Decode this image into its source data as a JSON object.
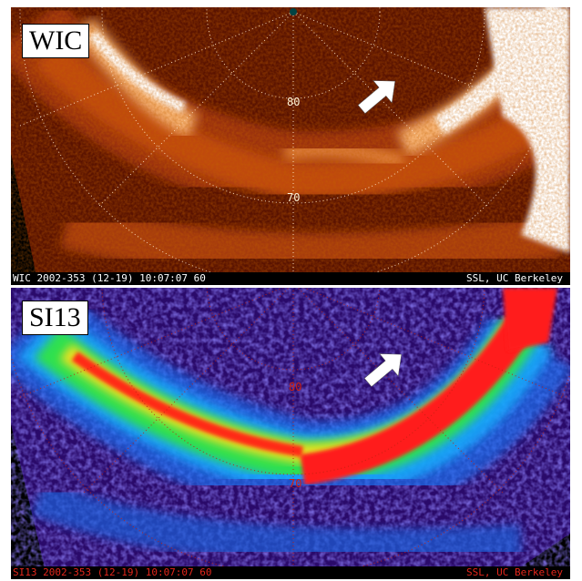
{
  "panels": {
    "wic": {
      "tag": "WIC",
      "footer_left": "WIC  2002-353 (12-19)  10:07:07  60",
      "footer_right": "SSL, UC Berkeley",
      "lat_80": "80",
      "lat_70": "70",
      "colors": {
        "background": "#5a1300",
        "dim": "#8e2a02",
        "mid": "#c8480c",
        "bright": "#f5a15a",
        "peak": "#ffffff"
      }
    },
    "si13": {
      "tag": "SI13",
      "footer_left": "SI13  2002-353 (12-19)  10:07:07  60",
      "footer_right": "SSL, UC Berkeley",
      "lat_80": "80",
      "lat_70": "70",
      "colors": {
        "background": "#2a0a6a",
        "low": "#3b2bc0",
        "mid": "#1aa0ff",
        "high": "#22dd44",
        "peak": "#ff1a1a"
      }
    }
  },
  "icons": {
    "arrow": "white-arrow-icon"
  }
}
